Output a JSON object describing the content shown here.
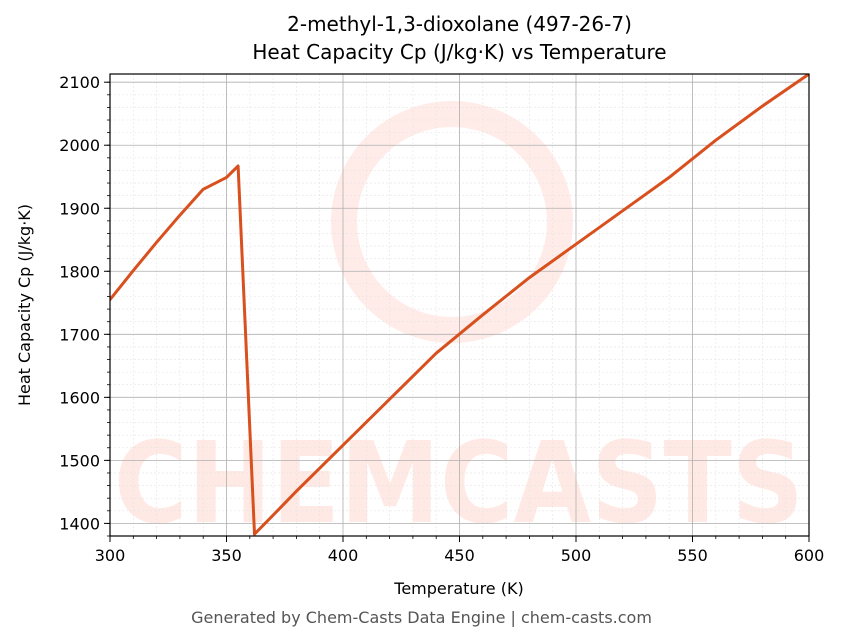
{
  "chart_data": {
    "type": "line",
    "title": "2-methyl-1,3-dioxolane (497-26-7)",
    "subtitle": "Heat Capacity Cp (J/kg·K) vs Temperature",
    "xlabel": "Temperature (K)",
    "ylabel": "Heat Capacity Cp (J/kg·K)",
    "xlim": [
      300,
      600
    ],
    "ylim": [
      1380,
      2113
    ],
    "x_ticks": [
      300,
      350,
      400,
      450,
      500,
      550,
      600
    ],
    "y_ticks": [
      1400,
      1500,
      1600,
      1700,
      1800,
      1900,
      2000,
      2100
    ],
    "grid": true,
    "series": [
      {
        "color": "#d9501f",
        "x": [
          300,
          310,
          320,
          330,
          340,
          350,
          355,
          362,
          370,
          380,
          400,
          420,
          440,
          460,
          480,
          500,
          520,
          540,
          560,
          580,
          600
        ],
        "y": [
          1755,
          1801,
          1846,
          1889,
          1930,
          1949,
          1967,
          1383,
          1413,
          1451,
          1524,
          1597,
          1670,
          1731,
          1790,
          1843,
          1896,
          1949,
          2008,
          2062,
          2113
        ]
      }
    ]
  },
  "watermark": {
    "text": "CHEMCASTS",
    "color": "#ff7a5e"
  },
  "footer": "Generated by Chem-Casts Data Engine | chem-casts.com"
}
